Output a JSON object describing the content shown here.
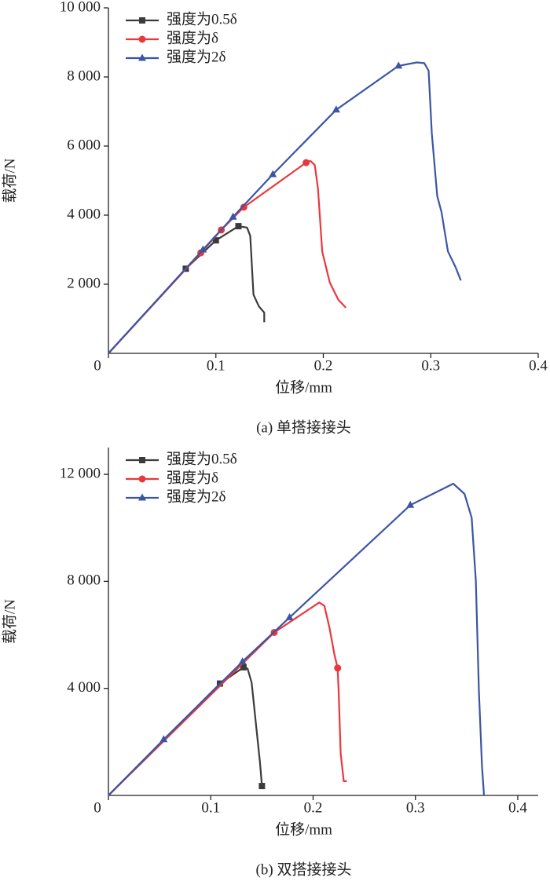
{
  "chart_data": [
    {
      "type": "line",
      "caption": "(a) 单搭接接头",
      "xlabel": "位移/mm",
      "ylabel": "载荷/N",
      "xlim": [
        0,
        0.4
      ],
      "ylim": [
        0,
        10000
      ],
      "xticks": [
        0,
        0.1,
        0.2,
        0.3,
        0.4
      ],
      "yticks": [
        {
          "value": 2000,
          "label": "2 000"
        },
        {
          "value": 4000,
          "label": "4 000"
        },
        {
          "value": 6000,
          "label": "6 000"
        },
        {
          "value": 8000,
          "label": "8 000"
        },
        {
          "value": 10000,
          "label": "10 000"
        }
      ],
      "legend": "upper left",
      "series": [
        {
          "name": "强度为0.5δ",
          "color": "#3d3a3a",
          "marker": "square",
          "markers": [
            1,
            2,
            3
          ],
          "x": [
            0,
            0.072,
            0.1,
            0.121,
            0.129,
            0.132,
            0.135,
            0.14,
            0.145,
            0.145
          ],
          "values": [
            0,
            2450,
            3270,
            3680,
            3640,
            3400,
            1700,
            1360,
            1180,
            900
          ]
        },
        {
          "name": "强度为δ",
          "color": "#e8383d",
          "marker": "circle",
          "markers": [
            1,
            2,
            3,
            4
          ],
          "x": [
            0,
            0.086,
            0.105,
            0.126,
            0.184,
            0.188,
            0.192,
            0.195,
            0.199,
            0.206,
            0.214,
            0.221
          ],
          "values": [
            0,
            2910,
            3570,
            4230,
            5520,
            5570,
            5450,
            4770,
            2950,
            2050,
            1550,
            1320
          ]
        },
        {
          "name": "强度为2δ",
          "color": "#3b55a3",
          "marker": "triangle",
          "markers": [
            1,
            2,
            3,
            4,
            5
          ],
          "x": [
            0,
            0.088,
            0.116,
            0.153,
            0.212,
            0.27,
            0.287,
            0.294,
            0.298,
            0.301,
            0.306,
            0.31,
            0.316,
            0.323,
            0.328
          ],
          "values": [
            0,
            3000,
            3950,
            5180,
            7050,
            8320,
            8420,
            8400,
            8180,
            6360,
            4550,
            4090,
            2950,
            2500,
            2110
          ]
        }
      ]
    },
    {
      "type": "line",
      "caption": "(b) 双搭接接头",
      "xlabel": "位移/mm",
      "ylabel": "载荷/N",
      "xlim": [
        0,
        0.42
      ],
      "ylim": [
        0,
        13000
      ],
      "xticks": [
        0,
        0.1,
        0.2,
        0.3,
        0.4
      ],
      "yticks": [
        {
          "value": 4000,
          "label": "4 000"
        },
        {
          "value": 8000,
          "label": "8 000"
        },
        {
          "value": 12000,
          "label": "12 000"
        }
      ],
      "legend": "upper left",
      "series": [
        {
          "name": "强度为0.5δ",
          "color": "#3d3a3a",
          "marker": "square",
          "markers": [
            1,
            2,
            7
          ],
          "x": [
            0,
            0.109,
            0.132,
            0.136,
            0.14,
            0.144,
            0.148,
            0.15
          ],
          "values": [
            0,
            4180,
            4790,
            4740,
            4210,
            2740,
            1260,
            350
          ]
        },
        {
          "name": "强度为δ",
          "color": "#e8383d",
          "marker": "circle",
          "markers": [
            1,
            6
          ],
          "x": [
            0,
            0.162,
            0.206,
            0.211,
            0.216,
            0.221,
            0.224,
            0.225,
            0.227,
            0.23,
            0.233
          ],
          "values": [
            0,
            6090,
            7210,
            7090,
            6270,
            5240,
            4760,
            3910,
            1560,
            530,
            530
          ]
        },
        {
          "name": "强度为2δ",
          "color": "#3b55a3",
          "marker": "triangle",
          "markers": [
            1,
            2,
            3,
            4
          ],
          "x": [
            0,
            0.054,
            0.131,
            0.177,
            0.295,
            0.337,
            0.348,
            0.355,
            0.359,
            0.362,
            0.365,
            0.367
          ],
          "values": [
            0,
            2090,
            5000,
            6650,
            10850,
            11650,
            11270,
            10380,
            8030,
            3910,
            1120,
            0
          ]
        }
      ]
    }
  ]
}
